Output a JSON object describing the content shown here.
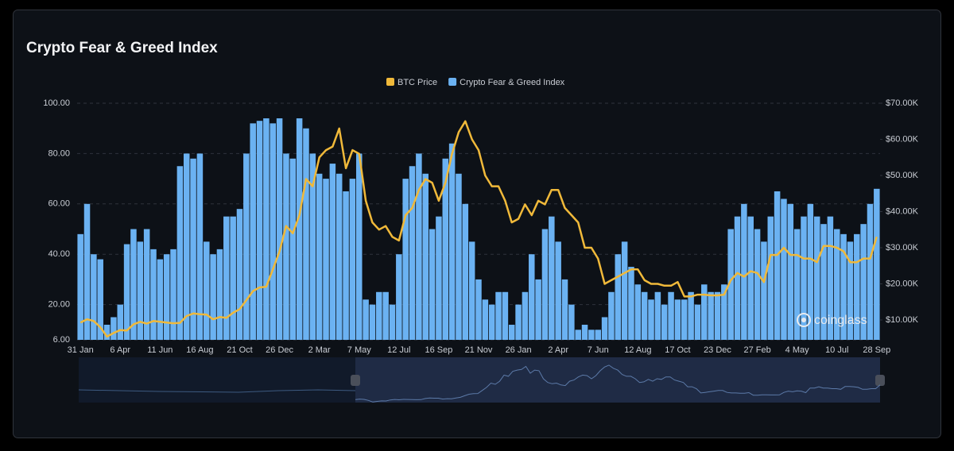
{
  "chart_data": {
    "type": "combo",
    "title": "Crypto Fear & Greed Index",
    "watermark": "coinglass",
    "categories": [
      "31 Jan",
      null,
      null,
      null,
      null,
      null,
      "6 Apr",
      null,
      null,
      null,
      null,
      null,
      "11 Jun",
      null,
      null,
      null,
      null,
      null,
      "16 Aug",
      null,
      null,
      null,
      null,
      null,
      "21 Oct",
      null,
      null,
      null,
      null,
      null,
      "26 Dec",
      null,
      null,
      null,
      null,
      null,
      "2 Mar",
      null,
      null,
      null,
      null,
      null,
      "7 May",
      null,
      null,
      null,
      null,
      null,
      "12 Jul",
      null,
      null,
      null,
      null,
      null,
      "16 Sep",
      null,
      null,
      null,
      null,
      null,
      "21 Nov",
      null,
      null,
      null,
      null,
      null,
      "26 Jan",
      null,
      null,
      null,
      null,
      null,
      "2 Apr",
      null,
      null,
      null,
      null,
      null,
      "7 Jun",
      null,
      null,
      null,
      null,
      null,
      "12 Aug",
      null,
      null,
      null,
      null,
      null,
      "17 Oct",
      null,
      null,
      null,
      null,
      null,
      "23 Dec",
      null,
      null,
      null,
      null,
      null,
      "27 Feb",
      null,
      null,
      null,
      null,
      null,
      "4 May",
      null,
      null,
      null,
      null,
      null,
      "10 Jul",
      null,
      null,
      null,
      null,
      null,
      "28 Sep"
    ],
    "series": [
      {
        "name": "BTC Price",
        "type": "line",
        "axis": "y2",
        "color": "#f0b93a",
        "values": [
          9300,
          10200,
          9700,
          8000,
          5400,
          6400,
          7200,
          7100,
          8800,
          9500,
          9000,
          9700,
          9500,
          9300,
          9100,
          9200,
          11100,
          11800,
          11600,
          11500,
          10200,
          10800,
          10600,
          12000,
          13000,
          15500,
          18000,
          19000,
          19200,
          24000,
          29000,
          36000,
          34000,
          39000,
          49000,
          47000,
          55000,
          57000,
          58000,
          63000,
          52000,
          57000,
          56000,
          43000,
          37000,
          35000,
          36000,
          33000,
          32000,
          39000,
          41000,
          46000,
          49000,
          48000,
          43000,
          48000,
          56000,
          62000,
          65000,
          60000,
          57000,
          50000,
          47000,
          47000,
          43000,
          37000,
          38000,
          42000,
          39000,
          43000,
          42000,
          46000,
          46000,
          41000,
          39000,
          37000,
          30000,
          30000,
          27000,
          20000,
          21000,
          22000,
          23000,
          24000,
          24000,
          21000,
          20000,
          20000,
          19500,
          19500,
          20500,
          16500,
          16500,
          17000,
          17000,
          16800,
          16800,
          17000,
          21000,
          23000,
          22000,
          23500,
          23000,
          20500,
          28000,
          28000,
          30000,
          28000,
          28000,
          27000,
          27000,
          26000,
          30500,
          30500,
          30000,
          29000,
          26000,
          26000,
          27000,
          27000,
          33000
        ]
      },
      {
        "name": "Crypto Fear & Greed Index",
        "type": "bar",
        "color": "#6bb2f2",
        "values": [
          48,
          60,
          40,
          38,
          12,
          15,
          20,
          44,
          50,
          45,
          50,
          42,
          38,
          40,
          42,
          75,
          80,
          78,
          80,
          45,
          40,
          42,
          55,
          55,
          58,
          80,
          92,
          93,
          94,
          92,
          94,
          80,
          78,
          94,
          90,
          80,
          72,
          70,
          76,
          72,
          65,
          70,
          80,
          22,
          20,
          25,
          25,
          20,
          40,
          70,
          75,
          80,
          72,
          50,
          55,
          78,
          84,
          72,
          60,
          45,
          30,
          22,
          20,
          25,
          25,
          12,
          20,
          25,
          40,
          30,
          50,
          55,
          45,
          30,
          20,
          10,
          12,
          10,
          10,
          15,
          25,
          40,
          45,
          35,
          28,
          25,
          22,
          25,
          20,
          25,
          22,
          22,
          25,
          20,
          28,
          25,
          25,
          28,
          50,
          55,
          60,
          55,
          50,
          45,
          55,
          65,
          62,
          60,
          50,
          55,
          60,
          55,
          52,
          55,
          50,
          48,
          45,
          48,
          52,
          60,
          66
        ]
      }
    ],
    "ylim": [
      6,
      100
    ],
    "yticks": [
      {
        "value": 6,
        "label": "6.00"
      },
      {
        "value": 20,
        "label": "20.00"
      },
      {
        "value": 40,
        "label": "40.00"
      },
      {
        "value": 60,
        "label": "60.00"
      },
      {
        "value": 80,
        "label": "80.00"
      },
      {
        "value": 100,
        "label": "100.00"
      }
    ],
    "y2lim": [
      4500,
      70000
    ],
    "y2ticks": [
      {
        "value": 10000,
        "label": "$10.00K"
      },
      {
        "value": 20000,
        "label": "$20.00K"
      },
      {
        "value": 30000,
        "label": "$30.00K"
      },
      {
        "value": 40000,
        "label": "$40.00K"
      },
      {
        "value": 50000,
        "label": "$50.00K"
      },
      {
        "value": 60000,
        "label": "$60.00K"
      },
      {
        "value": 70000,
        "label": "$70.00K"
      }
    ],
    "grid": true,
    "legend": "top"
  }
}
